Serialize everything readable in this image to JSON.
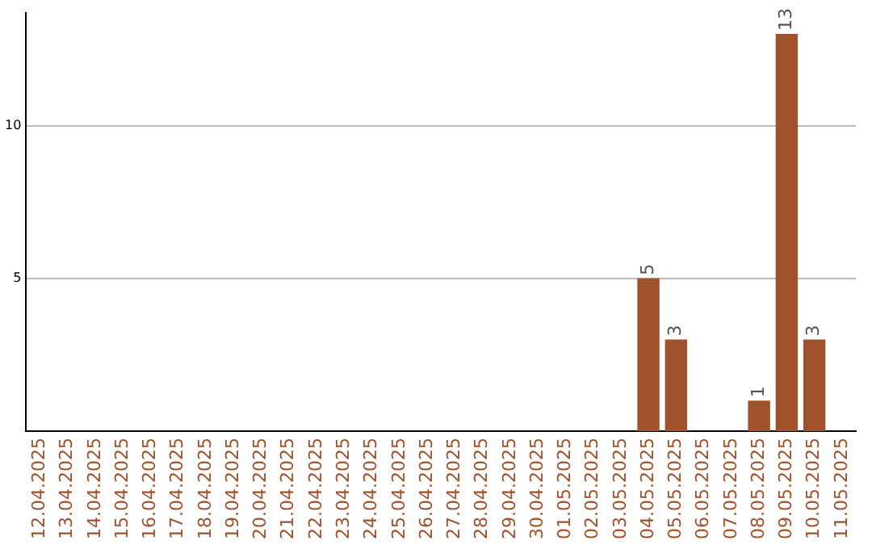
{
  "chart_data": {
    "type": "bar",
    "categories": [
      "12.04.2025",
      "13.04.2025",
      "14.04.2025",
      "15.04.2025",
      "16.04.2025",
      "17.04.2025",
      "18.04.2025",
      "19.04.2025",
      "20.04.2025",
      "21.04.2025",
      "22.04.2025",
      "23.04.2025",
      "24.04.2025",
      "25.04.2025",
      "26.04.2025",
      "27.04.2025",
      "28.04.2025",
      "29.04.2025",
      "30.04.2025",
      "01.05.2025",
      "02.05.2025",
      "03.05.2025",
      "04.05.2025",
      "05.05.2025",
      "06.05.2025",
      "07.05.2025",
      "08.05.2025",
      "09.05.2025",
      "10.05.2025",
      "11.05.2025"
    ],
    "values": [
      0,
      0,
      0,
      0,
      0,
      0,
      0,
      0,
      0,
      0,
      0,
      0,
      0,
      0,
      0,
      0,
      0,
      0,
      0,
      0,
      0,
      0,
      5,
      3,
      0,
      0,
      1,
      13,
      3,
      0
    ],
    "value_labels": [
      null,
      null,
      null,
      null,
      null,
      null,
      null,
      null,
      null,
      null,
      null,
      null,
      null,
      null,
      null,
      null,
      null,
      null,
      null,
      null,
      null,
      null,
      "5",
      "3",
      null,
      null,
      "1",
      "13",
      "3",
      null
    ],
    "color": "#a0522d",
    "ylim": [
      0,
      13.7
    ],
    "yticks": [
      5,
      10
    ],
    "grid": "y",
    "legend": false
  }
}
